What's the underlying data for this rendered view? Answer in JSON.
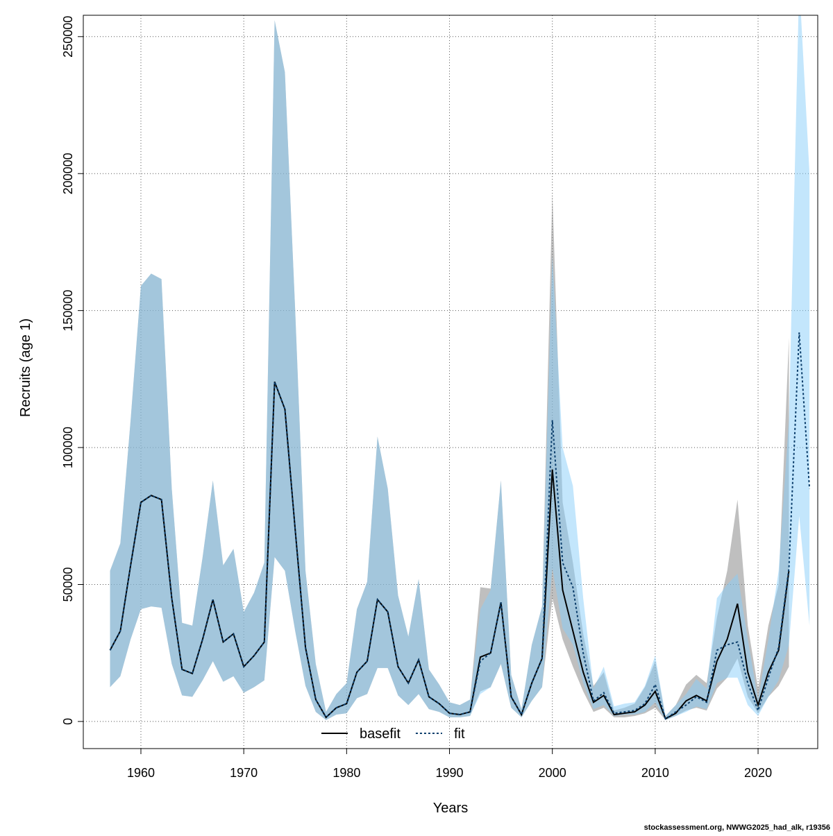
{
  "chart_data": {
    "type": "line",
    "xlabel": "Years",
    "ylabel": "Recruits (age 1)",
    "footnote": "stockassessment.org, NWWG2025_had_alk, r19356",
    "x": [
      1957,
      1958,
      1959,
      1960,
      1961,
      1962,
      1963,
      1964,
      1965,
      1966,
      1967,
      1968,
      1969,
      1970,
      1971,
      1972,
      1973,
      1974,
      1975,
      1976,
      1977,
      1978,
      1979,
      1980,
      1981,
      1982,
      1983,
      1984,
      1985,
      1986,
      1987,
      1988,
      1989,
      1990,
      1991,
      1992,
      1993,
      1994,
      1995,
      1996,
      1997,
      1998,
      1999,
      2000,
      2001,
      2002,
      2003,
      2004,
      2005,
      2006,
      2007,
      2008,
      2009,
      2010,
      2011,
      2012,
      2013,
      2014,
      2015,
      2016,
      2017,
      2018,
      2019,
      2020,
      2021,
      2022,
      2023,
      2024,
      2025
    ],
    "xlim": [
      1954.4,
      2025.8
    ],
    "xticks": [
      1960,
      1970,
      1980,
      1990,
      2000,
      2010,
      2020
    ],
    "ylim": [
      -9900,
      257800
    ],
    "yticks": [
      0,
      50000,
      100000,
      150000,
      200000,
      250000
    ],
    "grid": true,
    "legend": "bottom",
    "series": [
      {
        "name": "basefit",
        "color": "#000000",
        "linestyle": "solid",
        "band_color": "rgba(128,128,128,0.5)",
        "values": [
          26000,
          33000,
          57000,
          80000,
          82500,
          81000,
          45000,
          19000,
          17500,
          30000,
          44500,
          29000,
          32000,
          20000,
          24000,
          29000,
          124000,
          114000,
          70000,
          27000,
          8000,
          1500,
          5000,
          6500,
          18000,
          22000,
          44500,
          40000,
          20000,
          14000,
          22500,
          9000,
          6500,
          3000,
          2500,
          3500,
          23500,
          25000,
          43500,
          9000,
          2500,
          14000,
          23000,
          92000,
          48000,
          33000,
          18000,
          7000,
          9500,
          2500,
          3000,
          3500,
          6000,
          11000,
          1000,
          3000,
          7500,
          9500,
          7500,
          22000,
          30000,
          43000,
          18000,
          6000,
          18000,
          26000,
          55000,
          null,
          null
        ],
        "low": [
          12500,
          16500,
          30000,
          41000,
          42000,
          41500,
          21000,
          9500,
          9000,
          15000,
          22000,
          14500,
          16500,
          10500,
          12500,
          15000,
          60000,
          55000,
          33000,
          13000,
          3500,
          500,
          2500,
          3000,
          8500,
          10000,
          19500,
          19500,
          9500,
          6000,
          10000,
          4500,
          3500,
          1500,
          1500,
          2000,
          11000,
          12500,
          21000,
          5000,
          1500,
          7500,
          12500,
          45000,
          30000,
          20000,
          11000,
          3500,
          5000,
          1500,
          1500,
          2000,
          3000,
          5000,
          500,
          2000,
          4000,
          5000,
          4000,
          12000,
          16000,
          23000,
          9000,
          3000,
          9000,
          13000,
          20000,
          null,
          null
        ],
        "high": [
          55000,
          65000,
          110000,
          159000,
          163500,
          161500,
          85000,
          36000,
          35000,
          60000,
          88000,
          57000,
          63000,
          40000,
          47000,
          58000,
          256000,
          237000,
          150000,
          55000,
          21000,
          3500,
          10000,
          14000,
          41000,
          51000,
          104000,
          85000,
          46000,
          31000,
          52000,
          19000,
          13500,
          7000,
          6000,
          8000,
          49000,
          48500,
          88000,
          17000,
          4500,
          28000,
          42000,
          193000,
          80000,
          58000,
          32000,
          13000,
          18000,
          4000,
          5000,
          6500,
          12500,
          22000,
          2000,
          6000,
          13500,
          17000,
          14000,
          38000,
          55000,
          81000,
          35000,
          12000,
          35000,
          50000,
          140000,
          null,
          null
        ]
      },
      {
        "name": "fit",
        "color": "#0a3d6b",
        "linestyle": "dotted",
        "band_color": "rgba(135,206,250,0.5)",
        "values": [
          26000,
          33000,
          57000,
          80000,
          82500,
          81000,
          45000,
          19000,
          17500,
          30000,
          44500,
          29000,
          32000,
          20000,
          24000,
          29000,
          124000,
          114000,
          70000,
          27000,
          8000,
          1500,
          5000,
          6500,
          18000,
          22000,
          44500,
          40000,
          20000,
          14000,
          22500,
          9000,
          6500,
          3000,
          2500,
          3500,
          22000,
          25000,
          43500,
          9000,
          2500,
          14000,
          23000,
          110000,
          58000,
          49000,
          25000,
          7500,
          10500,
          3000,
          3500,
          4000,
          6500,
          13500,
          1000,
          3500,
          6000,
          9000,
          7000,
          26000,
          28000,
          29000,
          14000,
          4000,
          16000,
          27000,
          56000,
          142000,
          85000
        ],
        "low": [
          12500,
          16500,
          30000,
          41000,
          42000,
          41500,
          21000,
          9500,
          9000,
          15000,
          22000,
          14500,
          16500,
          10500,
          12500,
          15000,
          60000,
          55000,
          33000,
          13000,
          3500,
          500,
          2500,
          3000,
          8500,
          10000,
          19500,
          19500,
          9500,
          6000,
          10000,
          4500,
          3500,
          1500,
          1500,
          2000,
          10000,
          12500,
          21000,
          5000,
          1500,
          7500,
          12500,
          56000,
          34000,
          28000,
          14000,
          4500,
          6000,
          2000,
          2500,
          2500,
          3500,
          7000,
          500,
          2000,
          3500,
          5500,
          4500,
          14000,
          16000,
          16000,
          6000,
          2000,
          9000,
          15000,
          28000,
          75000,
          35000
        ],
        "high": [
          55000,
          65000,
          110000,
          159000,
          163500,
          161500,
          85000,
          36000,
          35000,
          60000,
          88000,
          57000,
          63000,
          40000,
          47000,
          58000,
          256000,
          237000,
          150000,
          55000,
          21000,
          3500,
          10000,
          14000,
          41000,
          51000,
          104000,
          85000,
          46000,
          31000,
          52000,
          19000,
          13500,
          7000,
          6000,
          8000,
          41000,
          48000,
          88000,
          17000,
          4500,
          28000,
          42000,
          170000,
          100000,
          86000,
          45000,
          12000,
          20000,
          5500,
          6500,
          7000,
          13000,
          24000,
          2000,
          6000,
          10000,
          15500,
          12000,
          45000,
          50000,
          54000,
          30000,
          8000,
          30000,
          55000,
          110000,
          270000,
          200000
        ]
      }
    ]
  }
}
